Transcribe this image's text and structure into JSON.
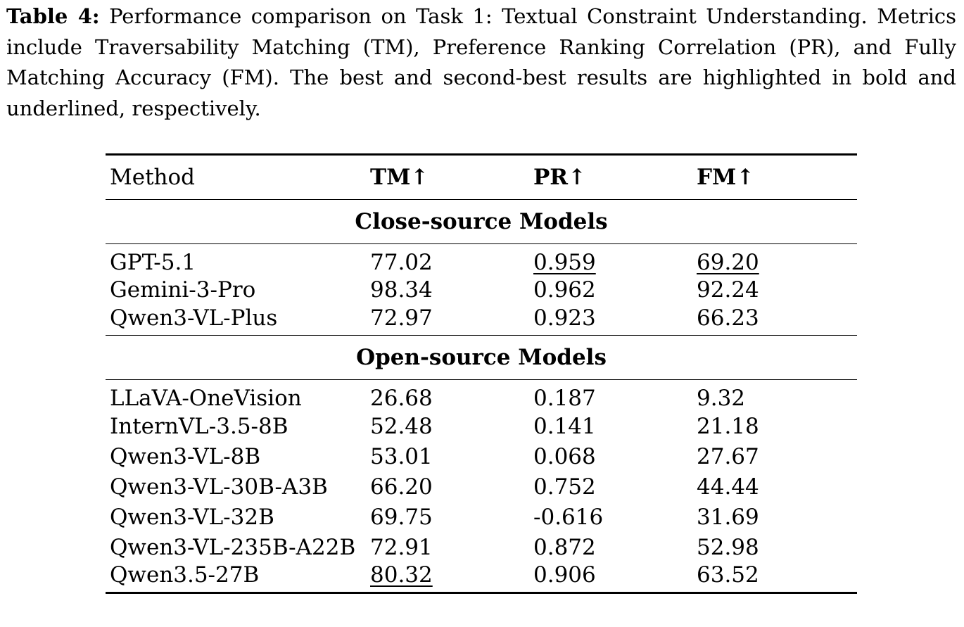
{
  "caption": {
    "label": "Table 4:",
    "text": "Performance comparison on Task 1: Textual Constraint Understanding. Metrics include Traversability Matching (TM), Preference Ranking Correlation (PR), and Fully Matching Accuracy (FM). The best and second-best results are highlighted in bold and underlined, respectively."
  },
  "table": {
    "headers": {
      "method": "Method",
      "tm": "TM↑",
      "pr": "PR↑",
      "fm": "FM↑"
    },
    "groups": {
      "close": {
        "title": "Close-source Models",
        "rows": [
          {
            "method": "GPT-5.1",
            "tm": "77.02",
            "pr": "0.959",
            "fm": "69.20"
          },
          {
            "method": "Gemini-3-Pro",
            "tm": "98.34",
            "pr": "0.962",
            "fm": "92.24"
          },
          {
            "method": "Qwen3-VL-Plus",
            "tm": "72.97",
            "pr": "0.923",
            "fm": "66.23"
          }
        ]
      },
      "open": {
        "title": "Open-source Models",
        "rows": [
          {
            "method": "LLaVA-OneVision",
            "tm": "26.68",
            "pr": "0.187",
            "fm": "9.32"
          },
          {
            "method": "InternVL-3.5-8B",
            "tm": "52.48",
            "pr": "0.141",
            "fm": "21.18"
          },
          {
            "method": "Qwen3-VL-8B",
            "tm": "53.01",
            "pr": "0.068",
            "fm": "27.67"
          },
          {
            "method": "Qwen3-VL-30B-A3B",
            "tm": "66.20",
            "pr": "0.752",
            "fm": "44.44"
          },
          {
            "method": "Qwen3-VL-32B",
            "tm": "69.75",
            "pr": "-0.616",
            "fm": "31.69"
          },
          {
            "method": "Qwen3-VL-235B-A22B",
            "tm": "72.91",
            "pr": "0.872",
            "fm": "52.98"
          },
          {
            "method": "Qwen3.5-27B",
            "tm": "80.32",
            "pr": "0.906",
            "fm": "63.52"
          }
        ]
      }
    }
  }
}
